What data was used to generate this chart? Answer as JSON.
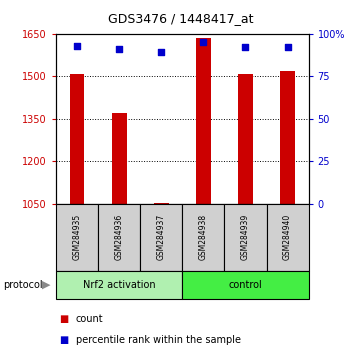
{
  "title": "GDS3476 / 1448417_at",
  "samples": [
    "GSM284935",
    "GSM284936",
    "GSM284937",
    "GSM284938",
    "GSM284939",
    "GSM284940"
  ],
  "counts": [
    1507,
    1370,
    1052,
    1635,
    1508,
    1518
  ],
  "percentile_ranks": [
    93,
    91,
    89,
    95,
    92,
    92
  ],
  "ylim_left": [
    1050,
    1650
  ],
  "ylim_right": [
    0,
    100
  ],
  "yticks_left": [
    1050,
    1200,
    1350,
    1500,
    1650
  ],
  "yticks_right": [
    0,
    25,
    50,
    75,
    100
  ],
  "ytick_labels_left": [
    "1050",
    "1200",
    "1350",
    "1500",
    "1650"
  ],
  "ytick_labels_right": [
    "0",
    "25",
    "50",
    "75",
    "100%"
  ],
  "group_labels": [
    "Nrf2 activation",
    "control"
  ],
  "group_colors": [
    "#b0f0b0",
    "#44ee44"
  ],
  "group_sizes": [
    3,
    3
  ],
  "bar_color": "#cc0000",
  "dot_color": "#0000cc",
  "bar_width": 0.35,
  "protocol_label": "protocol",
  "legend_count_label": "count",
  "legend_pct_label": "percentile rank within the sample",
  "left_tick_color": "#cc0000",
  "right_tick_color": "#0000cc"
}
